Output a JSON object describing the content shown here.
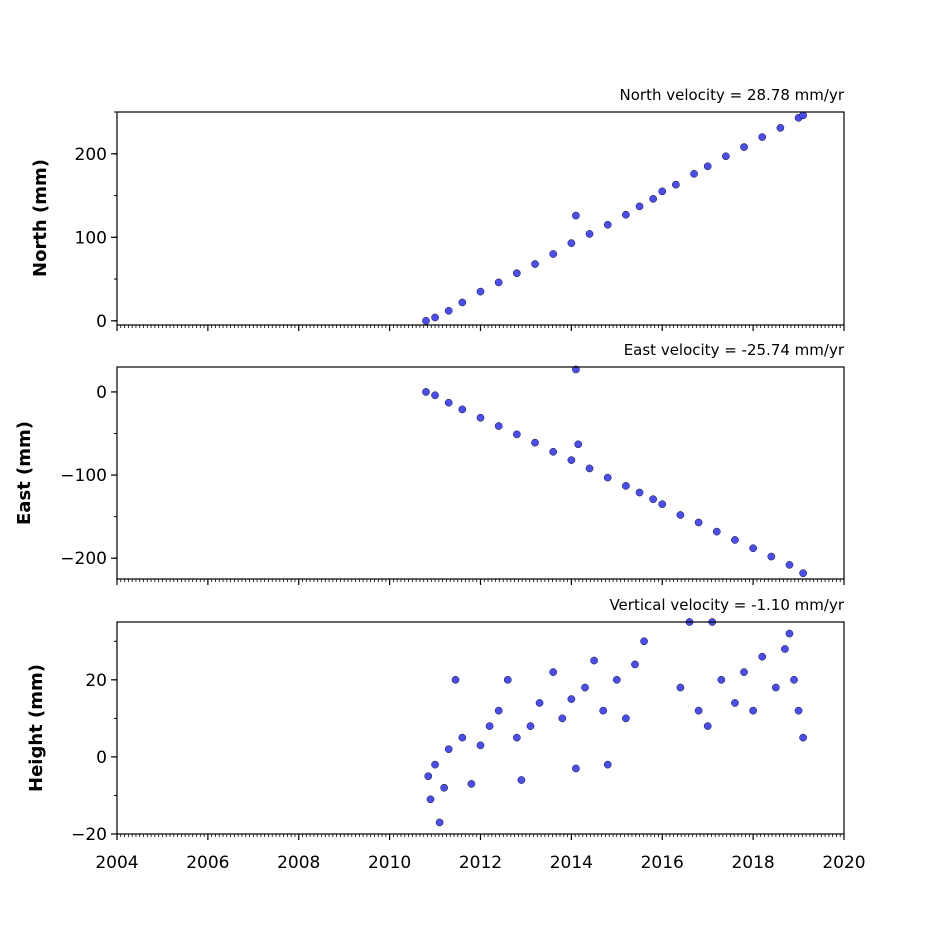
{
  "chart_data": [
    {
      "type": "scatter",
      "title": "North velocity = 28.78 mm/yr",
      "ylabel": "North (mm)",
      "xlim": [
        2004,
        2020
      ],
      "ylim": [
        -5,
        250
      ],
      "yticks": [
        0,
        100,
        200
      ],
      "ytick_labels": [
        "0",
        "100",
        "200"
      ],
      "series": [
        {
          "points": [
            [
              2010.8,
              0
            ],
            [
              2011.0,
              4
            ],
            [
              2011.3,
              12
            ],
            [
              2011.6,
              22
            ],
            [
              2012.0,
              35
            ],
            [
              2012.4,
              46
            ],
            [
              2012.8,
              57
            ],
            [
              2013.2,
              68
            ],
            [
              2013.6,
              80
            ],
            [
              2014.0,
              93
            ],
            [
              2014.1,
              126
            ],
            [
              2014.4,
              104
            ],
            [
              2014.8,
              115
            ],
            [
              2015.2,
              127
            ],
            [
              2015.5,
              137
            ],
            [
              2015.8,
              146
            ],
            [
              2016.0,
              155
            ],
            [
              2016.3,
              163
            ],
            [
              2016.7,
              176
            ],
            [
              2017.0,
              185
            ],
            [
              2017.4,
              197
            ],
            [
              2017.8,
              208
            ],
            [
              2018.2,
              220
            ],
            [
              2018.6,
              231
            ],
            [
              2019.0,
              243
            ],
            [
              2019.1,
              246
            ]
          ]
        }
      ]
    },
    {
      "type": "scatter",
      "title": "East velocity = -25.74 mm/yr",
      "ylabel": "East (mm)",
      "xlim": [
        2004,
        2020
      ],
      "ylim": [
        -225,
        30
      ],
      "yticks": [
        0,
        -100,
        -200
      ],
      "ytick_labels": [
        "0",
        "−100",
        "−200"
      ],
      "series": [
        {
          "points": [
            [
              2010.8,
              0
            ],
            [
              2011.0,
              -4
            ],
            [
              2011.3,
              -13
            ],
            [
              2011.6,
              -21
            ],
            [
              2012.0,
              -31
            ],
            [
              2012.4,
              -41
            ],
            [
              2012.8,
              -51
            ],
            [
              2013.2,
              -61
            ],
            [
              2013.6,
              -72
            ],
            [
              2014.0,
              -82
            ],
            [
              2014.1,
              27
            ],
            [
              2014.15,
              -63
            ],
            [
              2014.4,
              -92
            ],
            [
              2014.8,
              -103
            ],
            [
              2015.2,
              -113
            ],
            [
              2015.5,
              -121
            ],
            [
              2015.8,
              -129
            ],
            [
              2016.0,
              -135
            ],
            [
              2016.4,
              -148
            ],
            [
              2016.8,
              -157
            ],
            [
              2017.2,
              -168
            ],
            [
              2017.6,
              -178
            ],
            [
              2018.0,
              -188
            ],
            [
              2018.4,
              -198
            ],
            [
              2018.8,
              -208
            ],
            [
              2019.1,
              -218
            ]
          ]
        }
      ]
    },
    {
      "type": "scatter",
      "title": "Vertical velocity = -1.10 mm/yr",
      "ylabel": "Height (mm)",
      "xlim": [
        2004,
        2020
      ],
      "ylim": [
        -20,
        35
      ],
      "yticks": [
        20,
        0,
        -20
      ],
      "ytick_labels": [
        "20",
        "0",
        "−20"
      ],
      "xticks": [
        2004,
        2006,
        2008,
        2010,
        2012,
        2014,
        2016,
        2018,
        2020
      ],
      "xtick_labels": [
        "2004",
        "2006",
        "2008",
        "2010",
        "2012",
        "2014",
        "2016",
        "2018",
        "2020"
      ],
      "series": [
        {
          "points": [
            [
              2010.85,
              -5
            ],
            [
              2010.9,
              -11
            ],
            [
              2011.0,
              -2
            ],
            [
              2011.1,
              -17
            ],
            [
              2011.2,
              -8
            ],
            [
              2011.3,
              2
            ],
            [
              2011.45,
              20
            ],
            [
              2011.6,
              5
            ],
            [
              2011.8,
              -7
            ],
            [
              2012.0,
              3
            ],
            [
              2012.2,
              8
            ],
            [
              2012.4,
              12
            ],
            [
              2012.6,
              20
            ],
            [
              2012.8,
              5
            ],
            [
              2012.9,
              -6
            ],
            [
              2013.1,
              8
            ],
            [
              2013.3,
              14
            ],
            [
              2013.6,
              22
            ],
            [
              2013.8,
              10
            ],
            [
              2014.0,
              15
            ],
            [
              2014.1,
              -3
            ],
            [
              2014.3,
              18
            ],
            [
              2014.5,
              25
            ],
            [
              2014.7,
              12
            ],
            [
              2014.8,
              -2
            ],
            [
              2015.0,
              20
            ],
            [
              2015.2,
              10
            ],
            [
              2015.4,
              24
            ],
            [
              2015.6,
              30
            ],
            [
              2016.4,
              18
            ],
            [
              2016.6,
              35
            ],
            [
              2016.8,
              12
            ],
            [
              2017.0,
              8
            ],
            [
              2017.1,
              35
            ],
            [
              2017.3,
              20
            ],
            [
              2017.6,
              14
            ],
            [
              2017.8,
              22
            ],
            [
              2018.0,
              12
            ],
            [
              2018.2,
              26
            ],
            [
              2018.5,
              18
            ],
            [
              2018.7,
              28
            ],
            [
              2018.8,
              32
            ],
            [
              2018.9,
              20
            ],
            [
              2019.0,
              12
            ],
            [
              2019.1,
              5
            ]
          ]
        }
      ]
    }
  ]
}
